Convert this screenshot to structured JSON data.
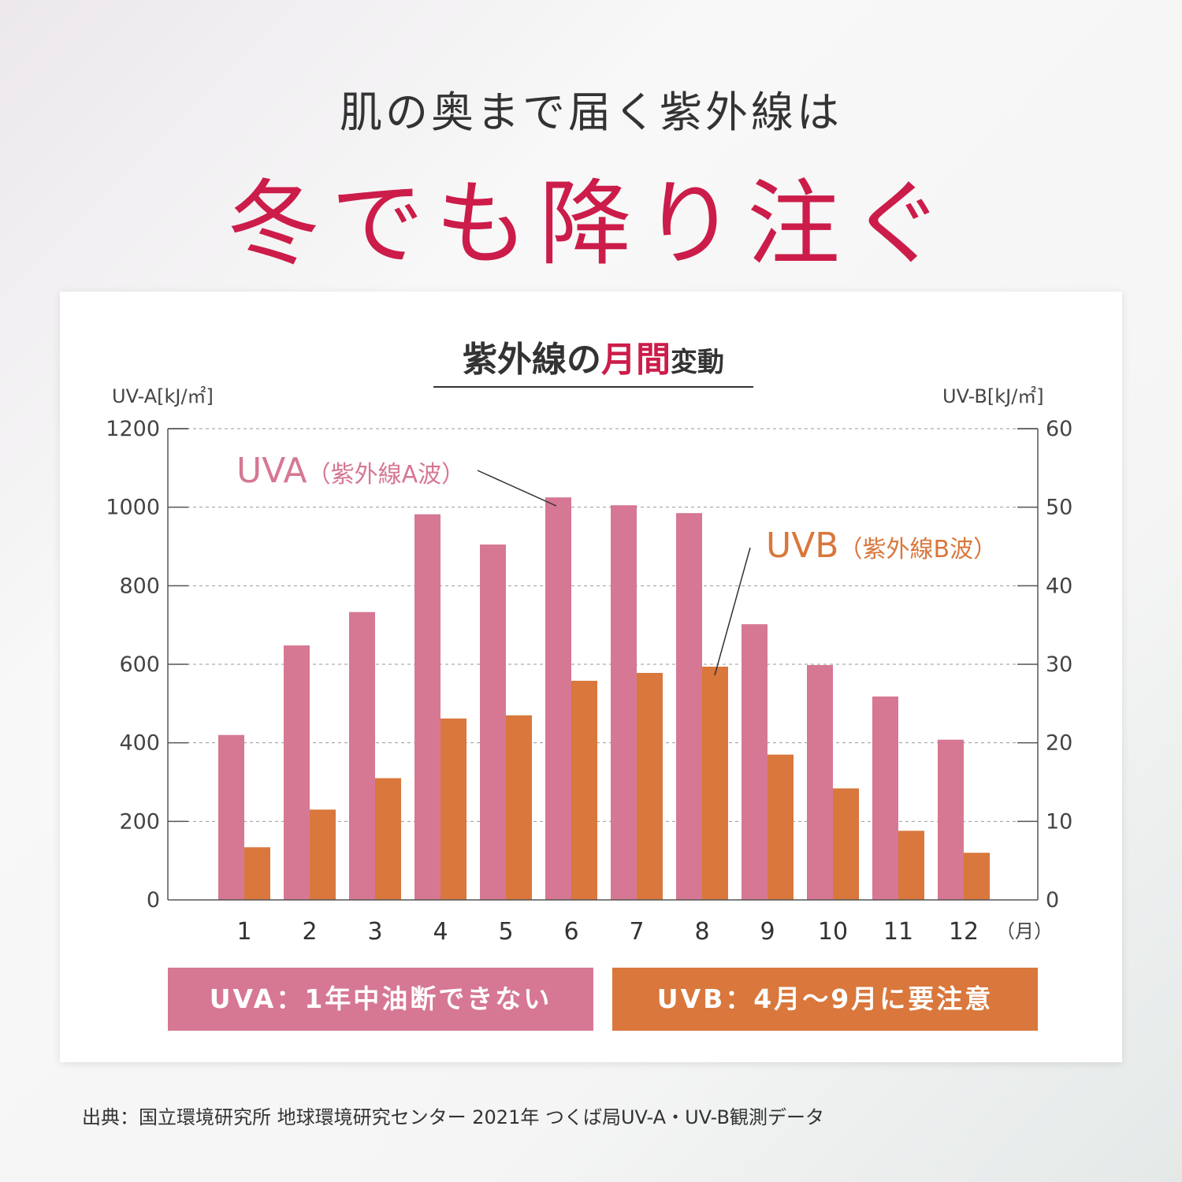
{
  "headline": {
    "line1": "肌の奥まで届く紫外線は",
    "line2": "冬でも降り注ぐ"
  },
  "chart_title": {
    "part1": "紫外線の",
    "accent": "月間",
    "part2": "変動"
  },
  "colors": {
    "uva": "#d67893",
    "uvb": "#d9773c",
    "accent_red": "#cc1c4a"
  },
  "chart_data": {
    "type": "bar",
    "x_axis": {
      "categories": [
        "1",
        "2",
        "3",
        "4",
        "5",
        "6",
        "7",
        "8",
        "9",
        "10",
        "11",
        "12"
      ],
      "unit": "（月）"
    },
    "y_left": {
      "label": "UV-A[kJ/㎡]",
      "ticks": [
        "0",
        "200",
        "400",
        "600",
        "800",
        "1000",
        "1200"
      ],
      "range": [
        0,
        1200
      ]
    },
    "y_right": {
      "label": "UV-B[kJ/㎡]",
      "ticks": [
        "0",
        "10",
        "20",
        "30",
        "40",
        "50",
        "60"
      ],
      "range": [
        0,
        60
      ]
    },
    "grid": "dashed horizontal",
    "series": [
      {
        "name": "UVA（紫外線A波）",
        "axis": "left",
        "values": [
          420,
          648,
          733,
          982,
          905,
          1025,
          1005,
          985,
          702,
          598,
          518,
          408
        ]
      },
      {
        "name": "UVB（紫外線B波）",
        "axis": "right",
        "values": [
          6.7,
          11.5,
          15.5,
          23.1,
          23.5,
          27.9,
          28.9,
          29.7,
          18.5,
          14.2,
          8.8,
          6.0
        ]
      }
    ],
    "annotations": {
      "uva_main": "UVA",
      "uva_sub": "（紫外線A波）",
      "uvb_main": "UVB",
      "uvb_sub": "（紫外線B波）"
    }
  },
  "bands": {
    "uva": "UVA：1年中油断できない",
    "uvb": "UVB：4月〜9月に要注意"
  },
  "source": "出典：国立環境研究所 地球環境研究センター 2021年 つくば局UV-A・UV-B観測データ"
}
